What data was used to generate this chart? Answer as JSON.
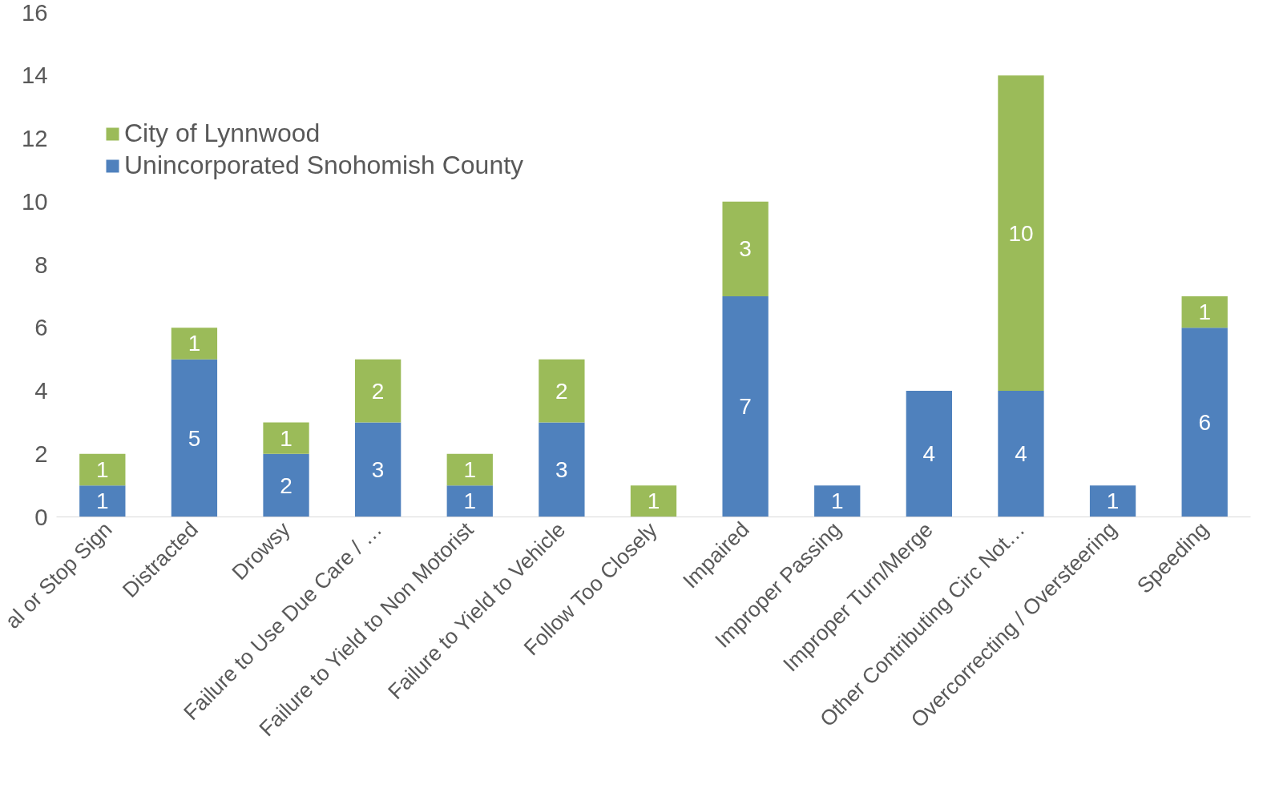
{
  "chart_data": {
    "type": "bar",
    "stacked": true,
    "data_labels": true,
    "legend": "top left",
    "grid": false,
    "categories": [
      "al or Stop Sign",
      "Distracted",
      "Drowsy",
      "Failure to Use Due Care / …",
      "Failure to Yield to Non Motorist",
      "Failure to Yield to Vehicle",
      "Follow Too Closely",
      "Impaired",
      "Improper Passing",
      "Improper Turn/Merge",
      "Other Contributing Circ Not…",
      "Overcorrecting / Oversteering",
      "Speeding"
    ],
    "series": [
      {
        "name": "Unincorporated Snohomish County",
        "color": "#4f81bd",
        "values": [
          1,
          5,
          2,
          3,
          1,
          3,
          null,
          7,
          1,
          4,
          4,
          1,
          6
        ]
      },
      {
        "name": "City of Lynnwood",
        "color": "#9bbb59",
        "values": [
          1,
          1,
          1,
          2,
          1,
          2,
          1,
          3,
          null,
          null,
          10,
          null,
          1
        ]
      }
    ],
    "ylim": [
      0,
      16
    ],
    "yticks": [
      0,
      2,
      4,
      6,
      8,
      10,
      12,
      14,
      16
    ]
  }
}
